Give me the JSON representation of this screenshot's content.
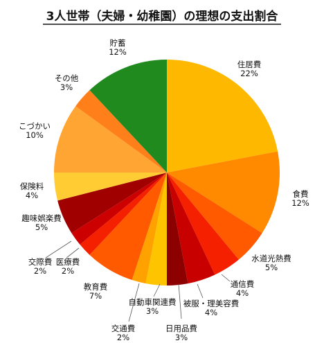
{
  "chart_data": {
    "type": "pie",
    "title": "3人世帯（夫婦・幼稚園）の理想の支出割合",
    "start": "12 o'clock",
    "direction": "clockwise",
    "slices": [
      {
        "label": "住居費",
        "value": 22,
        "value_label": "22%",
        "color": "#FFB800"
      },
      {
        "label": "食費",
        "value": 12,
        "value_label": "12%",
        "color": "#FF8A00"
      },
      {
        "label": "水道光熱費",
        "value": 5,
        "value_label": "5%",
        "color": "#FF5A00"
      },
      {
        "label": "通信費",
        "value": 4,
        "value_label": "4%",
        "color": "#F52000"
      },
      {
        "label": "被服・理美容費",
        "value": 4,
        "value_label": "4%",
        "color": "#C80000"
      },
      {
        "label": "日用品費",
        "value": 3,
        "value_label": "3%",
        "color": "#8C0000"
      },
      {
        "label": "自動車関連費",
        "value": 3,
        "value_label": "3%",
        "color": "#FFC400"
      },
      {
        "label": "交通費",
        "value": 2,
        "value_label": "2%",
        "color": "#FFA200"
      },
      {
        "label": "教育費",
        "value": 7,
        "value_label": "7%",
        "color": "#FF5A00"
      },
      {
        "label": "医療費",
        "value": 2,
        "value_label": "2%",
        "color": "#F52000"
      },
      {
        "label": "交際費",
        "value": 2,
        "value_label": "2%",
        "color": "#CC0000"
      },
      {
        "label": "趣味娯楽費",
        "value": 5,
        "value_label": "5%",
        "color": "#A00000"
      },
      {
        "label": "保険料",
        "value": 4,
        "value_label": "4%",
        "color": "#FFCC33"
      },
      {
        "label": "こづかい",
        "value": 10,
        "value_label": "10%",
        "color": "#FFA533"
      },
      {
        "label": "その他",
        "value": 3,
        "value_label": "3%",
        "color": "#FF7F1A"
      },
      {
        "label": "貯蓄",
        "value": 12,
        "value_label": "12%",
        "color": "#218A1F"
      }
    ]
  }
}
